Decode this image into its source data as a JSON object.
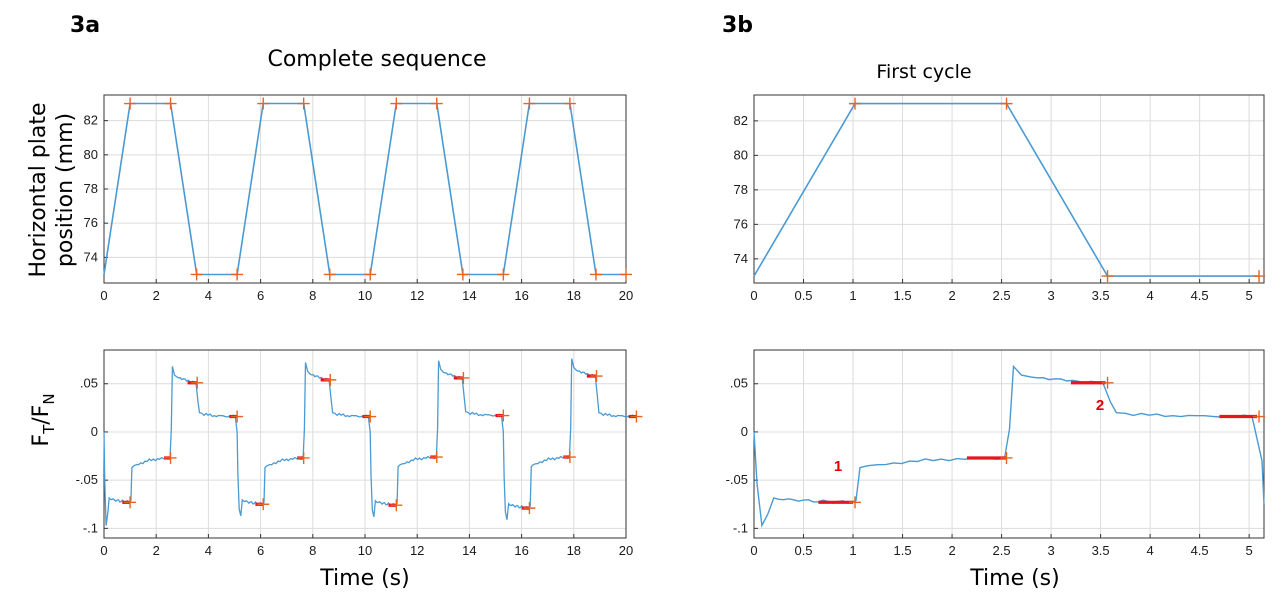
{
  "panels": {
    "a": {
      "label": "3a",
      "title": "Complete sequence"
    },
    "b": {
      "label": "3b",
      "title": "First cycle"
    }
  },
  "axis_labels": {
    "position": [
      "Horizontal plate",
      "position (mm)"
    ],
    "ratio": {
      "main_1": "F",
      "sub_1": "T",
      "slash": "/",
      "main_2": "F",
      "sub_2": "N"
    },
    "time_a": "Time (s)",
    "time_b": "Time (s)"
  },
  "annotations": {
    "first": "1",
    "second": "2"
  },
  "colors": {
    "line": "#4a9ad4",
    "marker": "#e8641e",
    "highlight": "#e8141e",
    "annotation": "#e00000"
  },
  "chart_data": [
    {
      "id": "a-position",
      "type": "line",
      "title": "Complete sequence",
      "xlabel": "",
      "ylabel": "Horizontal plate position (mm)",
      "xlim": [
        0,
        20
      ],
      "ylim": [
        72.5,
        83.5
      ],
      "xticks": [
        0,
        2,
        4,
        6,
        8,
        10,
        12,
        14,
        16,
        18,
        20
      ],
      "yticks": [
        74,
        76,
        78,
        80,
        82
      ],
      "grid": true,
      "x": [
        0,
        1.0,
        2.55,
        3.55,
        5.1,
        6.1,
        7.65,
        8.65,
        10.2,
        11.2,
        12.75,
        13.75,
        15.3,
        16.3,
        17.85,
        18.85,
        20
      ],
      "y": [
        73,
        83,
        83,
        73,
        73,
        83,
        83,
        73,
        73,
        83,
        83,
        73,
        73,
        83,
        83,
        73,
        73
      ],
      "markers": [
        [
          1.0,
          83
        ],
        [
          2.55,
          83
        ],
        [
          3.55,
          73
        ],
        [
          5.1,
          73
        ],
        [
          6.1,
          83
        ],
        [
          7.65,
          83
        ],
        [
          8.65,
          73
        ],
        [
          10.2,
          73
        ],
        [
          11.2,
          83
        ],
        [
          12.75,
          83
        ],
        [
          13.75,
          73
        ],
        [
          15.3,
          73
        ],
        [
          16.3,
          83
        ],
        [
          17.85,
          83
        ],
        [
          18.85,
          73
        ],
        [
          20,
          73
        ]
      ]
    },
    {
      "id": "a-ratio",
      "type": "line",
      "xlabel": "Time (s)",
      "ylabel": "FT/FN",
      "xlim": [
        0,
        20
      ],
      "ylim": [
        -0.11,
        0.085
      ],
      "xticks": [
        0,
        2,
        4,
        6,
        8,
        10,
        12,
        14,
        16,
        18,
        20
      ],
      "yticks": [
        -0.1,
        -0.05,
        0,
        0.05
      ],
      "grid": true,
      "cycle_period": 5.1,
      "cycles": [
        {
          "t0": 0,
          "plateaus": [
            -0.073,
            -0.027,
            0.051,
            0.016
          ],
          "peaks": [
            -0.097,
            -0.037,
            0.068,
            0.005
          ]
        },
        {
          "t0": 5.1,
          "plateaus": [
            -0.075,
            -0.027,
            0.054,
            0.016
          ],
          "peaks": [
            -0.08,
            -0.037,
            0.072,
            0.005
          ]
        },
        {
          "t0": 10.2,
          "plateaus": [
            -0.076,
            -0.026,
            0.056,
            0.017
          ],
          "peaks": [
            -0.081,
            -0.036,
            0.074,
            0.006
          ]
        },
        {
          "t0": 15.3,
          "plateaus": [
            -0.079,
            -0.026,
            0.058,
            0.016
          ],
          "peaks": [
            -0.083,
            -0.036,
            0.076,
            0.005
          ]
        }
      ]
    },
    {
      "id": "b-position",
      "type": "line",
      "title": "First cycle",
      "xlim": [
        0,
        5.15
      ],
      "ylim": [
        72.6,
        83.5
      ],
      "xticks": [
        0,
        0.5,
        1,
        1.5,
        2,
        2.5,
        3,
        3.5,
        4,
        4.5,
        5
      ],
      "yticks": [
        74,
        76,
        78,
        80,
        82
      ],
      "grid": true,
      "x": [
        0,
        1.02,
        2.55,
        3.57,
        5.1
      ],
      "y": [
        73,
        83,
        83,
        73,
        73
      ],
      "markers": [
        [
          1.02,
          83
        ],
        [
          2.55,
          83
        ],
        [
          3.57,
          73
        ],
        [
          5.1,
          73
        ]
      ]
    },
    {
      "id": "b-ratio",
      "type": "line",
      "xlabel": "Time (s)",
      "xlim": [
        0,
        5.15
      ],
      "ylim": [
        -0.11,
        0.085
      ],
      "xticks": [
        0,
        0.5,
        1,
        1.5,
        2,
        2.5,
        3,
        3.5,
        4,
        4.5,
        5
      ],
      "yticks": [
        -0.1,
        -0.05,
        0,
        0.05
      ],
      "grid": true,
      "plateaus": [
        -0.073,
        -0.027,
        0.051,
        0.016
      ],
      "peaks": [
        -0.097,
        -0.037,
        0.068,
        0.005
      ],
      "annotated": [
        {
          "label": "1",
          "x": 0.85,
          "y": -0.073
        },
        {
          "label": "2",
          "x": 3.3,
          "y": 0.051
        }
      ]
    }
  ]
}
